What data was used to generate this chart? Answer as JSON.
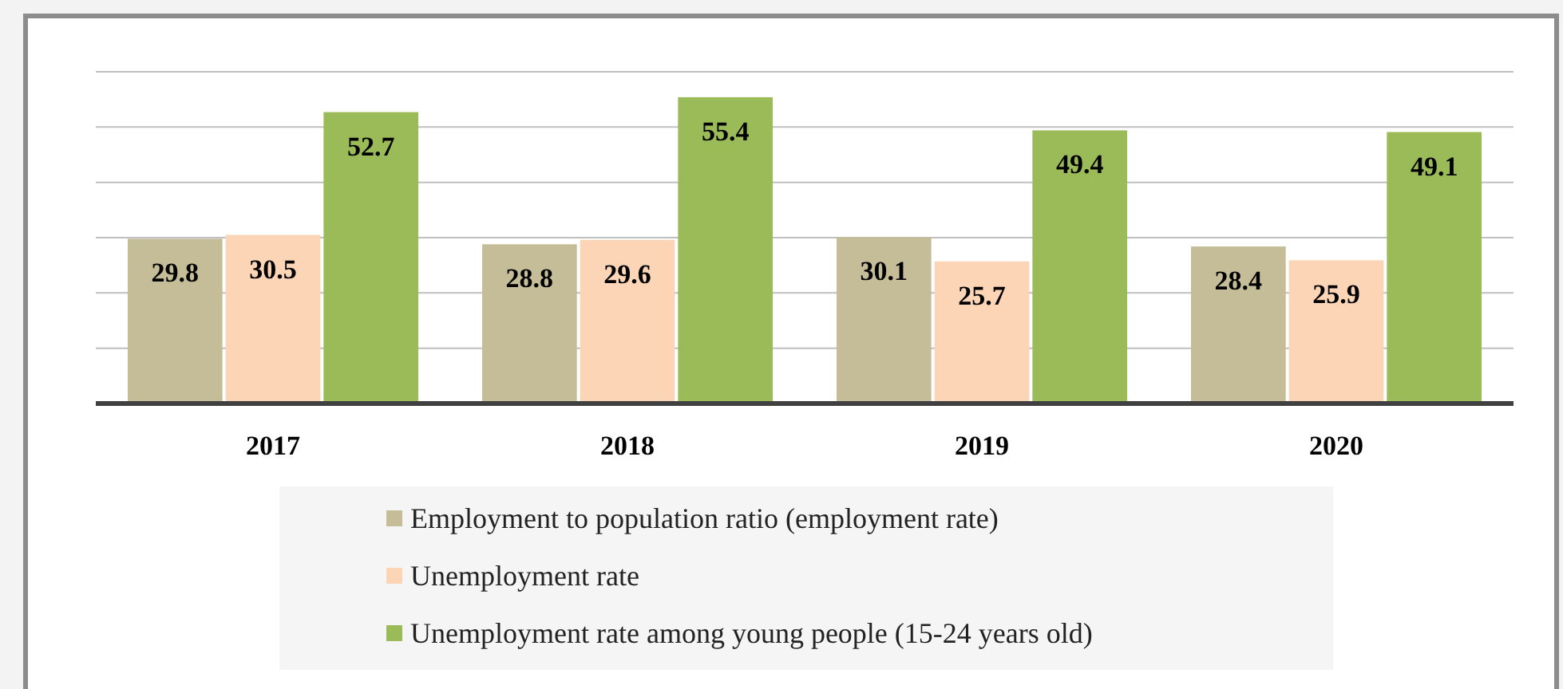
{
  "chart_data": {
    "type": "bar",
    "categories": [
      "2017",
      "2018",
      "2019",
      "2020"
    ],
    "series": [
      {
        "name": "Employment to population ratio (employment rate)",
        "color": "#c4bd97",
        "values": [
          29.8,
          28.8,
          30.1,
          28.4
        ]
      },
      {
        "name": "Unemployment rate",
        "color": "#fbd5b5",
        "values": [
          30.5,
          29.6,
          25.7,
          25.9
        ]
      },
      {
        "name": "Unemployment rate among young people (15-24 years old)",
        "color": "#9bbb59",
        "values": [
          52.7,
          55.4,
          49.4,
          49.1
        ]
      }
    ],
    "ylim": [
      0,
      60
    ],
    "yticks": [
      {
        "value": 10,
        "label": null
      },
      {
        "value": 20,
        "label": null
      },
      {
        "value": 30,
        "label": null
      },
      {
        "value": 40,
        "label": null
      },
      {
        "value": 50,
        "label": null
      },
      {
        "value": 60,
        "label": null
      }
    ],
    "tick_labels": "x",
    "grid": "y",
    "data_labels": true,
    "legend": "bottom"
  }
}
